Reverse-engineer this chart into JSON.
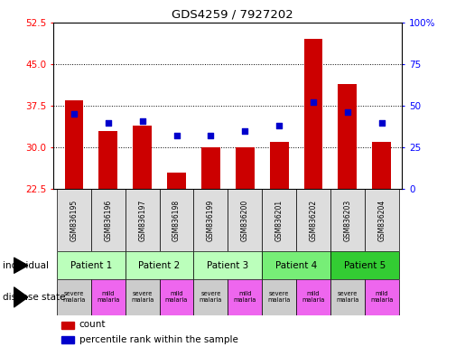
{
  "title": "GDS4259 / 7927202",
  "samples": [
    "GSM836195",
    "GSM836196",
    "GSM836197",
    "GSM836198",
    "GSM836199",
    "GSM836200",
    "GSM836201",
    "GSM836202",
    "GSM836203",
    "GSM836204"
  ],
  "counts": [
    38.5,
    33.0,
    34.0,
    25.5,
    30.0,
    30.0,
    31.0,
    49.5,
    41.5,
    31.0
  ],
  "percentile_ranks": [
    45,
    40,
    41,
    32,
    32,
    35,
    38,
    52,
    46,
    40
  ],
  "ylim_left": [
    22.5,
    52.5
  ],
  "ylim_right": [
    0,
    100
  ],
  "yticks_left": [
    22.5,
    30.0,
    37.5,
    45.0,
    52.5
  ],
  "yticks_right": [
    0,
    25,
    50,
    75,
    100
  ],
  "bar_color": "#cc0000",
  "dot_color": "#0000cc",
  "patients": [
    {
      "label": "Patient 1",
      "cols": [
        0,
        1
      ]
    },
    {
      "label": "Patient 2",
      "cols": [
        2,
        3
      ]
    },
    {
      "label": "Patient 3",
      "cols": [
        4,
        5
      ]
    },
    {
      "label": "Patient 4",
      "cols": [
        6,
        7
      ]
    },
    {
      "label": "Patient 5",
      "cols": [
        8,
        9
      ]
    }
  ],
  "patient_colors": [
    "#bbffbb",
    "#bbffbb",
    "#bbffbb",
    "#77ee77",
    "#33cc33"
  ],
  "col_disease": [
    "severe",
    "mild",
    "severe",
    "mild",
    "severe",
    "mild",
    "severe",
    "mild",
    "severe",
    "mild"
  ],
  "severe_color": "#cccccc",
  "mild_color": "#ee66ee",
  "sample_bg_color": "#dddddd",
  "fig_width": 5.15,
  "fig_height": 3.84,
  "dpi": 100
}
